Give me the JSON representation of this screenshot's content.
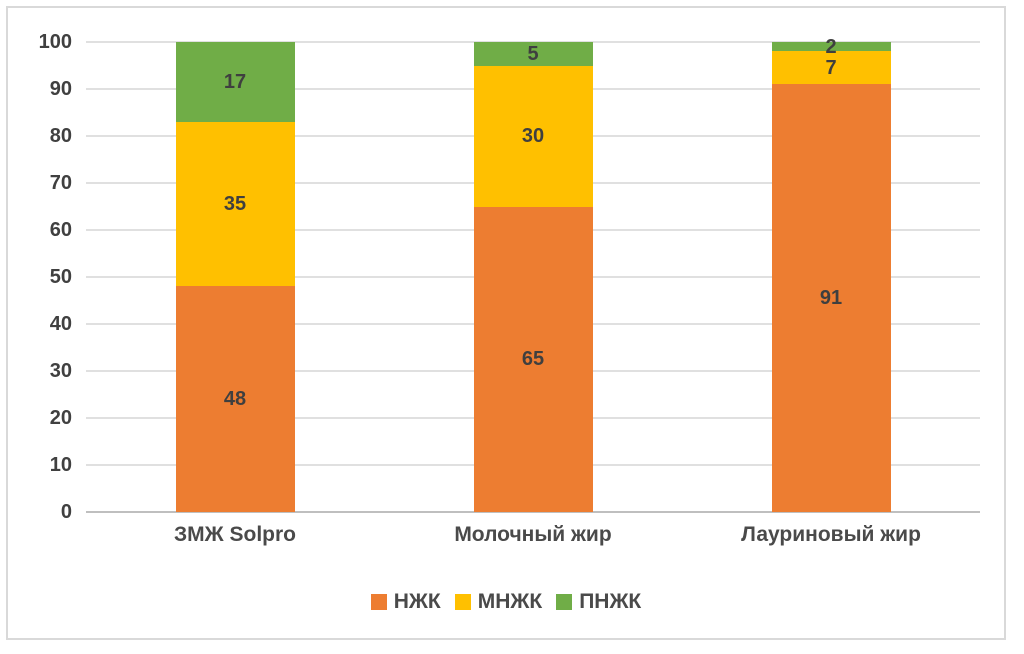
{
  "chart_data": {
    "type": "bar",
    "stacked": true,
    "categories": [
      "ЗМЖ Solpro",
      "Молочный жир",
      "Лауриновый жир"
    ],
    "series": [
      {
        "name": "НЖК",
        "color": "#ED7D31",
        "values": [
          48,
          65,
          91
        ]
      },
      {
        "name": "МНЖК",
        "color": "#FFC000",
        "values": [
          35,
          30,
          7
        ]
      },
      {
        "name": "ПНЖК",
        "color": "#70AD47",
        "values": [
          17,
          5,
          2
        ]
      }
    ],
    "ylim": [
      0,
      100
    ],
    "ytick_step": 10,
    "yticks": [
      0,
      10,
      20,
      30,
      40,
      50,
      60,
      70,
      80,
      90,
      100
    ],
    "grid": true,
    "legend_position": "bottom",
    "data_labels": true
  },
  "colors": {
    "grid": "#e0e0e0",
    "axis_line": "#bfbfbf",
    "tick_text": "#404040",
    "label_text": "#3f3f3f",
    "frame_border": "#d9d9d9",
    "background": "#ffffff"
  }
}
